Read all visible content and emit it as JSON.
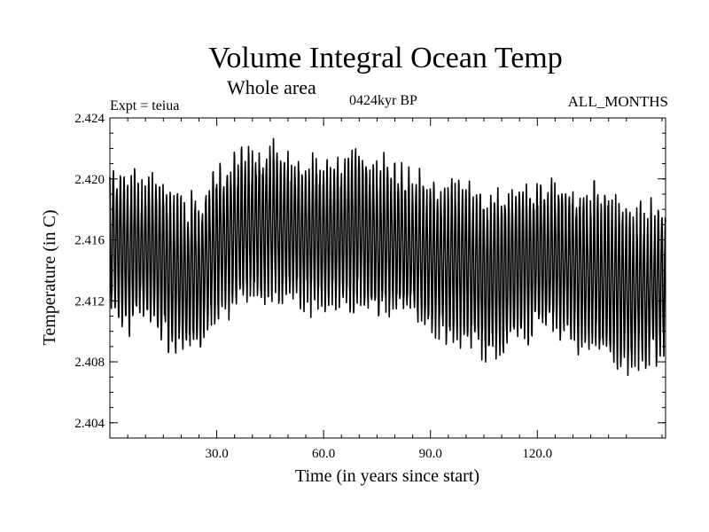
{
  "chart_data": {
    "type": "line",
    "title": "Volume Integral Ocean Temp",
    "subtitle": "Whole area",
    "experiment": "Expt = teiua",
    "period": "0424kyr BP",
    "months": "ALL_MONTHS",
    "xlabel": "Time (in years since start)",
    "ylabel": "Temperature (in C)",
    "xlim": [
      0,
      156
    ],
    "ylim": [
      2.403,
      2.424
    ],
    "x_ticks": [
      30,
      60,
      90,
      120
    ],
    "x_tick_labels": [
      "30.0",
      "60.0",
      "90.0",
      "120.0"
    ],
    "y_ticks": [
      2.404,
      2.408,
      2.412,
      2.416,
      2.42,
      2.424
    ],
    "y_tick_labels": [
      "2.404",
      "2.408",
      "2.412",
      "2.416",
      "2.420",
      "2.424"
    ],
    "series": [
      {
        "name": "Volume Integral Ocean Temp",
        "sampling": "monthly",
        "seasonal_cycle_period_years": 1,
        "annual_mean_profile": {
          "years": [
            0,
            5,
            10,
            15,
            20,
            25,
            30,
            35,
            40,
            45,
            50,
            55,
            60,
            65,
            70,
            75,
            80,
            85,
            90,
            95,
            100,
            105,
            110,
            115,
            120,
            125,
            130,
            135,
            140,
            145,
            150,
            156
          ],
          "mean": [
            2.4158,
            2.415,
            2.4155,
            2.4143,
            2.4135,
            2.4137,
            2.4157,
            2.4167,
            2.4168,
            2.417,
            2.4166,
            2.4163,
            2.4165,
            2.4163,
            2.4166,
            2.4158,
            2.416,
            2.4155,
            2.4149,
            2.4147,
            2.4143,
            2.414,
            2.4135,
            2.4145,
            2.415,
            2.4148,
            2.4142,
            2.414,
            2.4135,
            2.4128,
            2.4128,
            2.4135
          ],
          "half_amplitude": [
            0.0045,
            0.0045,
            0.0045,
            0.0047,
            0.0048,
            0.0047,
            0.0045,
            0.0046,
            0.0048,
            0.0048,
            0.0046,
            0.0045,
            0.0045,
            0.0046,
            0.0047,
            0.0046,
            0.0045,
            0.0045,
            0.0046,
            0.0048,
            0.005,
            0.0052,
            0.0052,
            0.0048,
            0.0046,
            0.0047,
            0.0048,
            0.005,
            0.0052,
            0.005,
            0.0048,
            0.0045
          ]
        }
      }
    ]
  }
}
